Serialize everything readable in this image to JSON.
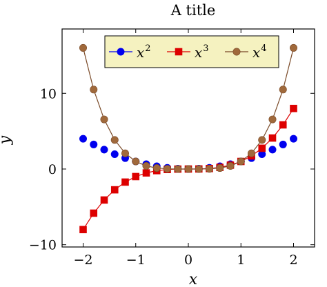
{
  "chart_data": {
    "type": "line",
    "title": "A title",
    "xlabel": "x",
    "ylabel": "y",
    "xlim": [
      -2.4,
      2.4
    ],
    "ylim": [
      -10.3,
      18.5
    ],
    "xticks": [
      -2,
      -1,
      0,
      1,
      2
    ],
    "xtick_labels": [
      "−2",
      "−1",
      "0",
      "1",
      "2"
    ],
    "yticks": [
      -10,
      0,
      10
    ],
    "ytick_labels": [
      "−10",
      "0",
      "10"
    ],
    "grid": false,
    "legend_position": "top-center",
    "x": [
      -2.0,
      -1.8,
      -1.6,
      -1.4,
      -1.2,
      -1.0,
      -0.8,
      -0.6,
      -0.4,
      -0.2,
      0.0,
      0.2,
      0.4,
      0.6,
      0.8,
      1.0,
      1.2,
      1.4,
      1.6,
      1.8,
      2.0
    ],
    "series": [
      {
        "name": "x^2",
        "legend_base": "x",
        "legend_exp": "2",
        "color": "#0000ee",
        "marker": "circle",
        "show_line": false,
        "values": [
          4.0,
          3.24,
          2.56,
          1.96,
          1.44,
          1.0,
          0.64,
          0.36,
          0.16,
          0.04,
          0.0,
          0.04,
          0.16,
          0.36,
          0.64,
          1.0,
          1.44,
          1.96,
          2.56,
          3.24,
          4.0
        ]
      },
      {
        "name": "x^3",
        "legend_base": "x",
        "legend_exp": "3",
        "color": "#dd0000",
        "line_color": "#dd0000",
        "marker": "square",
        "show_line": true,
        "values": [
          -8.0,
          -5.832,
          -4.096,
          -2.744,
          -1.728,
          -1.0,
          -0.512,
          -0.216,
          -0.064,
          -0.008,
          0.0,
          0.008,
          0.064,
          0.216,
          0.512,
          1.0,
          1.728,
          2.744,
          4.096,
          5.832,
          8.0
        ]
      },
      {
        "name": "x^4",
        "legend_base": "x",
        "legend_exp": "4",
        "color": "#a0693b",
        "line_color": "#7a4a28",
        "marker": "circle",
        "show_line": true,
        "values": [
          16.0,
          10.498,
          6.554,
          3.842,
          2.074,
          1.0,
          0.41,
          0.13,
          0.026,
          0.002,
          0.0,
          0.002,
          0.026,
          0.13,
          0.41,
          1.0,
          2.074,
          3.842,
          6.554,
          10.498,
          16.0
        ]
      }
    ],
    "legend_fill": "#f5f2c0"
  }
}
